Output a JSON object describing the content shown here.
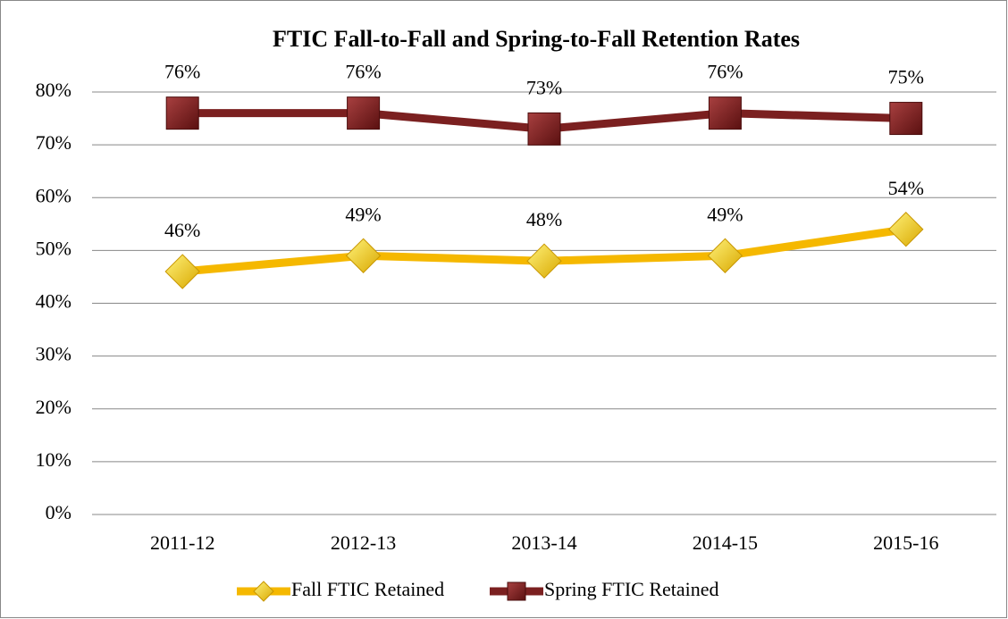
{
  "chart_data": {
    "type": "line",
    "title": "FTIC Fall-to-Fall and Spring-to-Fall Retention Rates",
    "categories": [
      "2011-12",
      "2012-13",
      "2013-14",
      "2014-15",
      "2015-16"
    ],
    "series": [
      {
        "name": "Fall FTIC Retained",
        "color": "#f5b800",
        "marker": "diamond",
        "values": [
          46,
          49,
          48,
          49,
          54
        ],
        "value_labels": [
          "46%",
          "49%",
          "48%",
          "49%",
          "54%"
        ]
      },
      {
        "name": "Spring FTIC Retained",
        "color": "#7b2020",
        "marker": "square",
        "values": [
          76,
          76,
          73,
          76,
          75
        ],
        "value_labels": [
          "76%",
          "76%",
          "73%",
          "76%",
          "75%"
        ]
      }
    ],
    "ylim": [
      0,
      80
    ],
    "yticks": [
      {
        "value": 0,
        "label": "0%"
      },
      {
        "value": 10,
        "label": "10%"
      },
      {
        "value": 20,
        "label": "20%"
      },
      {
        "value": 30,
        "label": "30%"
      },
      {
        "value": 40,
        "label": "40%"
      },
      {
        "value": 50,
        "label": "50%"
      },
      {
        "value": 60,
        "label": "60%"
      },
      {
        "value": 70,
        "label": "70%"
      },
      {
        "value": 80,
        "label": "80%"
      }
    ],
    "grid": true,
    "legend": "bottom"
  }
}
